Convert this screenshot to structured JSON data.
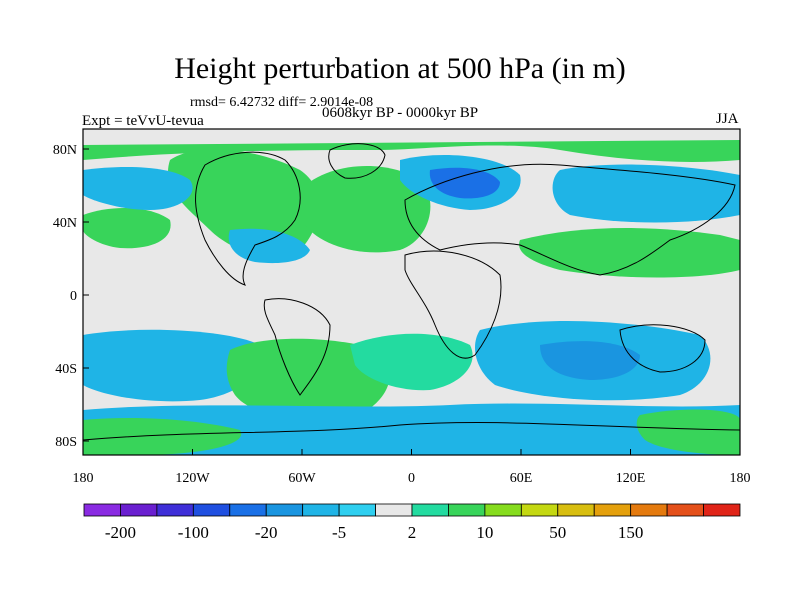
{
  "title": "Height perturbation at 500 hPa (in m)",
  "stats": "rmsd= 6.42732 diff= 2.9014e-08",
  "experiment": "Expt = teVvU-tevua",
  "period": "0608kyr BP - 0000kyr BP",
  "season": "JJA",
  "axes": {
    "x_ticks": [
      "180",
      "120W",
      "60W",
      "0",
      "60E",
      "120E",
      "180"
    ],
    "y_ticks": [
      "80N",
      "40N",
      "0",
      "40S",
      "80S"
    ]
  },
  "colorbar": {
    "colors": [
      "#8a2be2",
      "#6a1fd0",
      "#3f2fd8",
      "#1f4fe0",
      "#1a70e6",
      "#1a95e0",
      "#1fb4e6",
      "#2fcff0",
      "#e8e8e8",
      "#23dba0",
      "#38d45a",
      "#86dc1e",
      "#c4d812",
      "#d8be10",
      "#e4a00c",
      "#e47a0e",
      "#e4501a",
      "#e02418"
    ],
    "labels": [
      "-200",
      "-100",
      "-20",
      "-5",
      "2",
      "10",
      "50",
      "150"
    ]
  }
}
